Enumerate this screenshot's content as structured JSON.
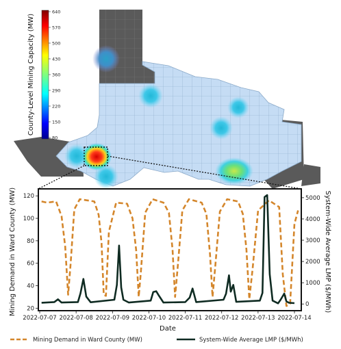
{
  "colors": {
    "map_fill": "#c5dcf4",
    "dark_counties": "#5a5a5a",
    "county_border": "#8aa9c8",
    "demand_line": "#d4862b",
    "lmp_line": "#0f2b22",
    "leader": "#111111"
  },
  "chart_data": [
    {
      "type": "heatmap",
      "colorbar": {
        "label": "County-Level Mining Capacity (MW)",
        "ticks": [
          "640",
          "570",
          "500",
          "430",
          "360",
          "290",
          "220",
          "150",
          "80"
        ],
        "range": [
          80,
          640
        ],
        "colormap": "jet"
      },
      "hotspots": [
        {
          "value": 640,
          "highlight": true
        },
        {
          "value": 300
        },
        {
          "value": 280
        },
        {
          "value": 330
        },
        {
          "value": 300
        },
        {
          "value": 360
        },
        {
          "value": 260
        },
        {
          "value": 230
        }
      ]
    },
    {
      "type": "line",
      "xlabel": "Date",
      "ylabel": "Mining Demand in Ward County (MW)",
      "y2label": "System-Wide Average LMP ($/MWh)",
      "ylim": [
        19,
        125
      ],
      "y2lim": [
        -250,
        5350
      ],
      "yticks": [
        "20",
        "40",
        "60",
        "80",
        "100",
        "120"
      ],
      "y2ticks": [
        "0",
        "1000",
        "2000",
        "3000",
        "4000",
        "5000"
      ],
      "xlim": [
        0,
        7.15
      ],
      "xtick_labels": [
        "2022-07-07",
        "2022-07-08",
        "2022-07-09",
        "2022-07-10",
        "2022-07-11",
        "2022-07-12",
        "2022-07-13",
        "2022-07-14"
      ],
      "series": [
        {
          "name": "Mining Demand in Ward County (MW)",
          "axis": "left",
          "style": "dashed",
          "x": [
            0.05,
            0.2,
            0.45,
            0.6,
            0.7,
            0.78,
            0.85,
            0.95,
            1.1,
            1.5,
            1.62,
            1.7,
            1.76,
            1.82,
            1.9,
            2.1,
            2.4,
            2.55,
            2.65,
            2.72,
            2.78,
            2.9,
            3.1,
            3.4,
            3.55,
            3.65,
            3.72,
            3.8,
            3.92,
            4.1,
            4.45,
            4.58,
            4.68,
            4.75,
            4.82,
            4.95,
            5.15,
            5.45,
            5.58,
            5.68,
            5.76,
            5.85,
            6.0,
            6.3,
            6.58,
            6.68,
            6.78,
            6.88,
            7.0,
            7.1
          ],
          "y": [
            115,
            114,
            115,
            102,
            75,
            32,
            60,
            108,
            117,
            115,
            103,
            78,
            32,
            31,
            88,
            114,
            113,
            100,
            72,
            30,
            52,
            105,
            117,
            114,
            105,
            72,
            30,
            60,
            107,
            117,
            114,
            104,
            68,
            30,
            56,
            106,
            117,
            115,
            104,
            72,
            28,
            55,
            107,
            116,
            110,
            50,
            22,
            24,
            95,
            107
          ]
        },
        {
          "name": "System-Wide Average LMP ($/MWh)",
          "axis": "right",
          "style": "solid",
          "x": [
            0.05,
            0.4,
            0.5,
            0.6,
            1.05,
            1.12,
            1.2,
            1.28,
            1.4,
            2.05,
            2.12,
            2.18,
            2.24,
            2.3,
            2.45,
            3.05,
            3.12,
            3.2,
            3.28,
            3.4,
            4.0,
            4.12,
            4.2,
            4.3,
            5.05,
            5.12,
            5.2,
            5.25,
            5.32,
            5.4,
            6.05,
            6.12,
            6.18,
            6.25,
            6.32,
            6.4,
            6.55,
            6.62,
            6.72,
            6.78,
            6.85,
            7.0
          ],
          "y": [
            60,
            90,
            220,
            70,
            90,
            500,
            1180,
            350,
            80,
            200,
            900,
            2750,
            780,
            200,
            70,
            160,
            560,
            600,
            380,
            70,
            90,
            300,
            730,
            90,
            200,
            480,
            1350,
            580,
            900,
            100,
            160,
            520,
            5030,
            5120,
            1400,
            160,
            30,
            200,
            490,
            120,
            60,
            40
          ]
        }
      ]
    }
  ]
}
